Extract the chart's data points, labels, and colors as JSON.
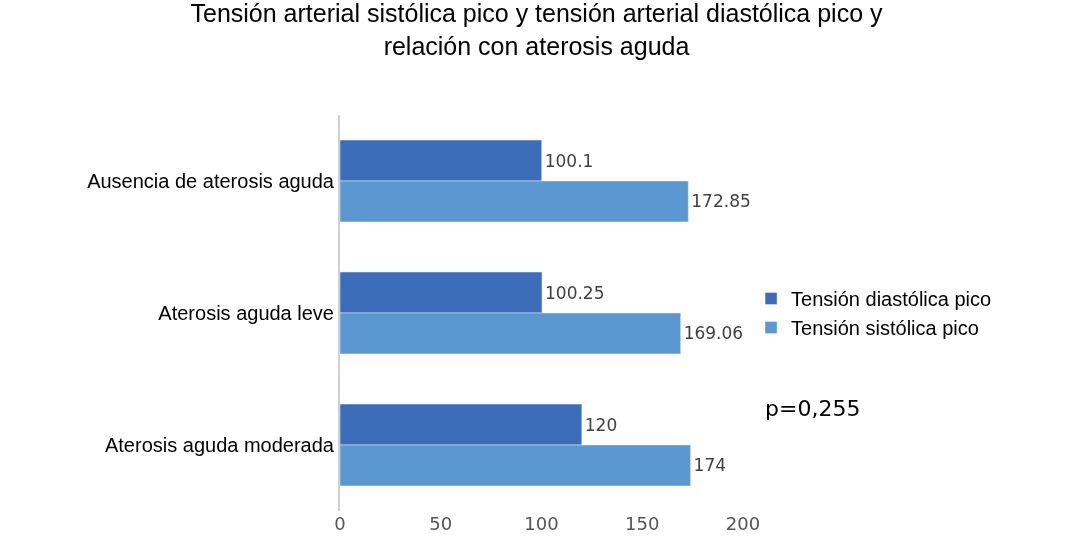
{
  "chart_data": {
    "type": "bar",
    "orientation": "horizontal",
    "title": "Tensión arterial sistólica pico y tensión arterial diastólica pico y relación con aterosis aguda",
    "categories": [
      "Ausencia de aterosis aguda",
      "Aterosis aguda leve",
      "Aterosis aguda moderada"
    ],
    "series": [
      {
        "name": "Tensión diastólica pico",
        "color": "#3c6db8",
        "values": [
          100.1,
          100.25,
          120
        ]
      },
      {
        "name": "Tensión sistólica pico",
        "color": "#5b97d1",
        "values": [
          172.85,
          169.06,
          174
        ]
      }
    ],
    "xlim": [
      0,
      200
    ],
    "xticks": [
      0,
      50,
      100,
      150,
      200
    ],
    "legend": "right",
    "data_labels": true,
    "annotations": [
      "p=0,255"
    ]
  }
}
